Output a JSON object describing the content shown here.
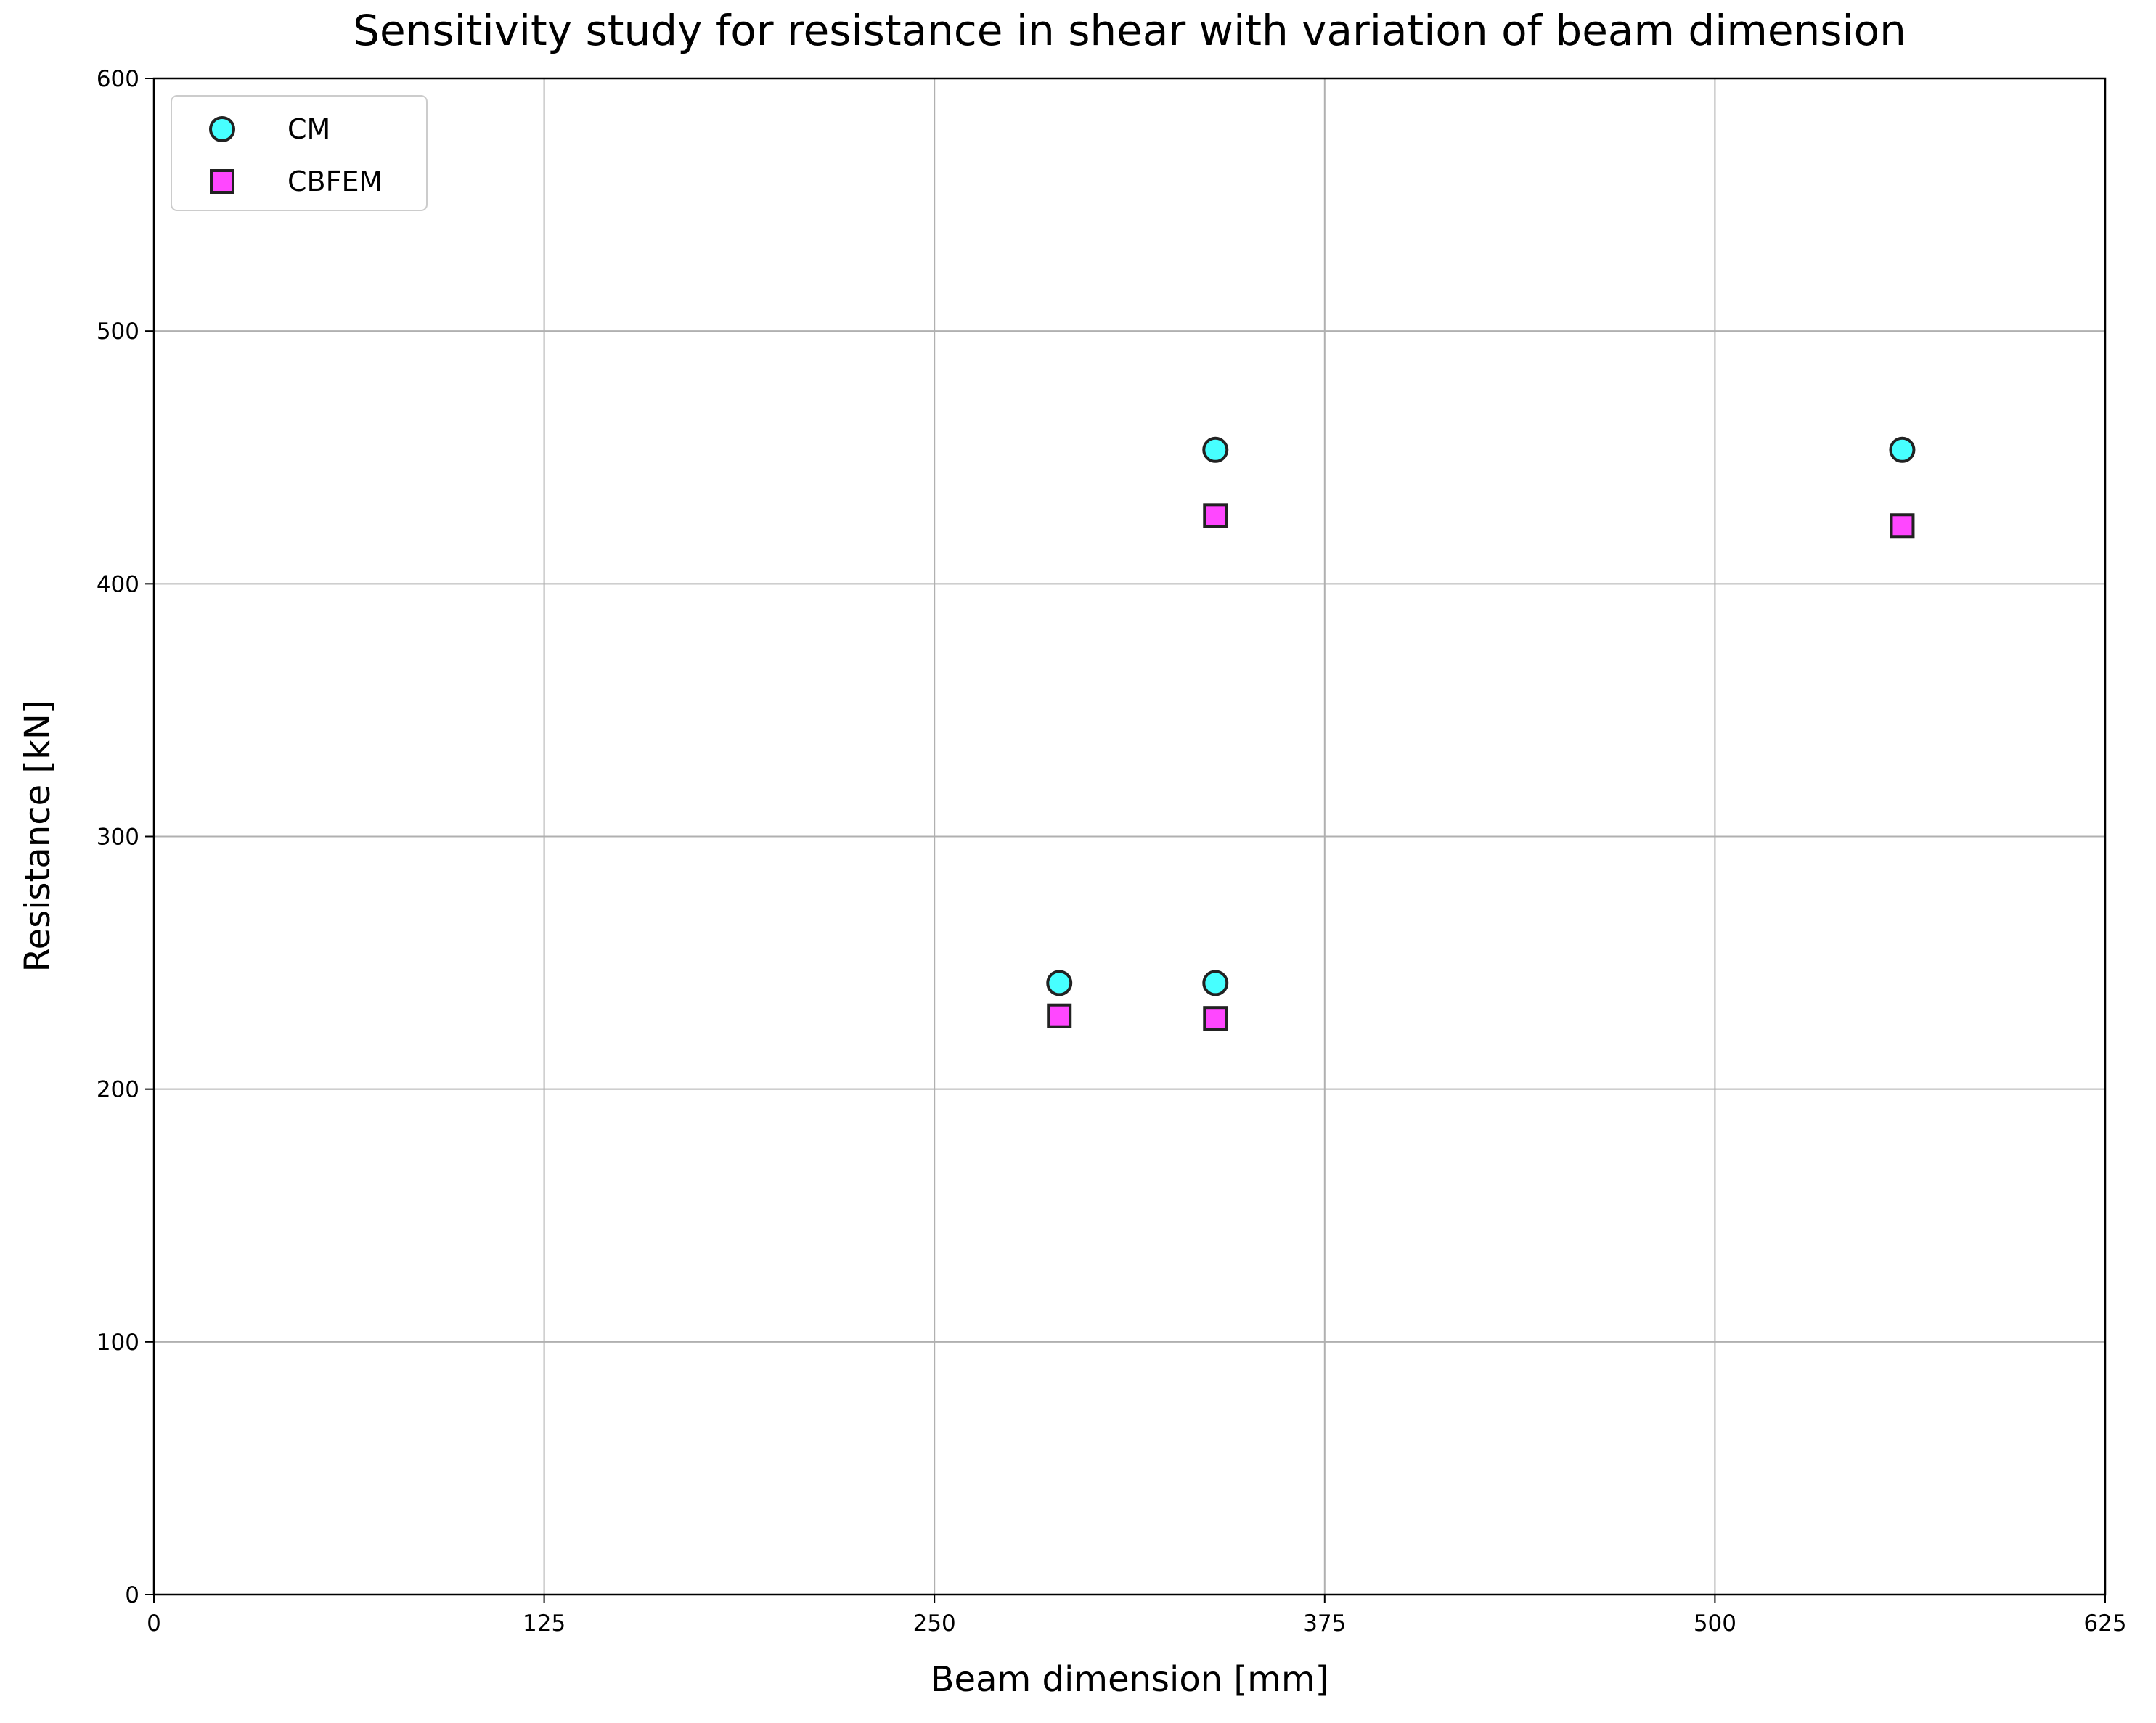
{
  "chart_data": {
    "type": "scatter",
    "title": "Sensitivity study for resistance in shear with variation of beam dimension",
    "x_label": "Beam dimension [mm]",
    "y_label": "Resistance [kN]",
    "xlim": [
      0,
      625
    ],
    "xticks": [
      0,
      125,
      250,
      375,
      500,
      625
    ],
    "ylim": [
      0,
      600
    ],
    "yticks": [
      0,
      100,
      200,
      300,
      400,
      500,
      600
    ],
    "grid": true,
    "legend": "upper left",
    "series": [
      {
        "name": "CM",
        "color": "#33ffff",
        "marker": "circle",
        "x": [
          290,
          340,
          340,
          560
        ],
        "values": [
          242,
          453,
          242,
          453
        ]
      },
      {
        "name": "CBFEM",
        "color": "#ff33ff",
        "marker": "square",
        "x": [
          290,
          340,
          340,
          560
        ],
        "values": [
          229,
          427,
          228,
          423
        ]
      }
    ]
  }
}
